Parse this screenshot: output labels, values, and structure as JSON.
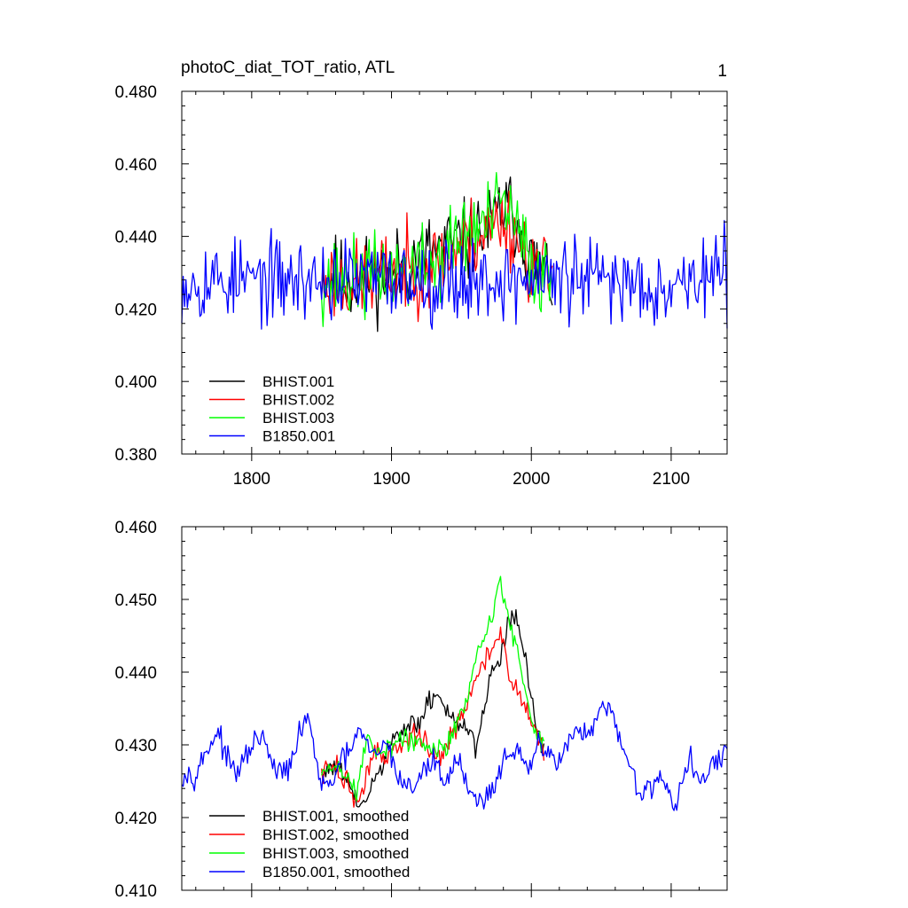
{
  "chart_data": [
    {
      "type": "line",
      "title": "photoC_diat_TOT_ratio, ATL",
      "title_right": "1",
      "xlim": [
        1750,
        2140
      ],
      "ylim": [
        0.38,
        0.48
      ],
      "xticks": [
        1800,
        1900,
        2000,
        2100
      ],
      "xtick_labels": [
        "1800",
        "1900",
        "2000",
        "2100"
      ],
      "yticks": [
        0.38,
        0.4,
        0.42,
        0.44,
        0.46,
        0.48
      ],
      "ytick_labels": [
        "0.380",
        "0.400",
        "0.420",
        "0.440",
        "0.460",
        "0.480"
      ],
      "legend_position": "bottom-left",
      "grid": false,
      "series": [
        {
          "name": "BHIST.001",
          "color": "#000000",
          "x_range": [
            1850,
            2015
          ],
          "seed": 11,
          "noise": 0.0085,
          "anchors": [
            [
              1850,
              0.43
            ],
            [
              1870,
              0.428
            ],
            [
              1900,
              0.43
            ],
            [
              1930,
              0.436
            ],
            [
              1950,
              0.438
            ],
            [
              1970,
              0.442
            ],
            [
              1980,
              0.448
            ],
            [
              1990,
              0.445
            ],
            [
              2000,
              0.433
            ],
            [
              2015,
              0.428
            ]
          ]
        },
        {
          "name": "BHIST.002",
          "color": "#ff0000",
          "x_range": [
            1850,
            2015
          ],
          "seed": 23,
          "noise": 0.0085,
          "anchors": [
            [
              1850,
              0.428
            ],
            [
              1870,
              0.427
            ],
            [
              1900,
              0.43
            ],
            [
              1930,
              0.432
            ],
            [
              1950,
              0.438
            ],
            [
              1970,
              0.442
            ],
            [
              1980,
              0.445
            ],
            [
              1990,
              0.44
            ],
            [
              2000,
              0.432
            ],
            [
              2015,
              0.428
            ]
          ]
        },
        {
          "name": "BHIST.003",
          "color": "#00ff00",
          "x_range": [
            1850,
            2015
          ],
          "seed": 37,
          "noise": 0.0085,
          "anchors": [
            [
              1850,
              0.428
            ],
            [
              1870,
              0.428
            ],
            [
              1900,
              0.43
            ],
            [
              1930,
              0.432
            ],
            [
              1950,
              0.44
            ],
            [
              1970,
              0.444
            ],
            [
              1980,
              0.45
            ],
            [
              1990,
              0.441
            ],
            [
              2000,
              0.432
            ],
            [
              2015,
              0.428
            ]
          ]
        },
        {
          "name": "B1850.001",
          "color": "#0000ff",
          "x_range": [
            1750,
            2140
          ],
          "seed": 53,
          "noise": 0.0085,
          "anchors": [
            [
              1750,
              0.428
            ],
            [
              1800,
              0.428
            ],
            [
              1850,
              0.428
            ],
            [
              1900,
              0.428
            ],
            [
              1950,
              0.428
            ],
            [
              2000,
              0.428
            ],
            [
              2050,
              0.428
            ],
            [
              2100,
              0.427
            ],
            [
              2140,
              0.43
            ]
          ]
        }
      ]
    },
    {
      "type": "line",
      "xlim": [
        1750,
        2140
      ],
      "ylim": [
        0.41,
        0.46
      ],
      "xticks": [
        1800,
        1900,
        2000,
        2100
      ],
      "yticks": [
        0.41,
        0.42,
        0.43,
        0.44,
        0.45,
        0.46
      ],
      "ytick_labels": [
        "0.410",
        "0.420",
        "0.430",
        "0.440",
        "0.450",
        "0.460"
      ],
      "legend_position": "bottom-left",
      "grid": false,
      "series": [
        {
          "name": "BHIST.001, smoothed",
          "color": "#000000",
          "x_range": [
            1850,
            2009
          ],
          "seed": 61,
          "noise": 0.0012,
          "anchors": [
            [
              1850,
              0.426
            ],
            [
              1860,
              0.427
            ],
            [
              1868,
              0.425
            ],
            [
              1875,
              0.422
            ],
            [
              1882,
              0.422
            ],
            [
              1890,
              0.426
            ],
            [
              1900,
              0.43
            ],
            [
              1908,
              0.432
            ],
            [
              1920,
              0.433
            ],
            [
              1930,
              0.437
            ],
            [
              1940,
              0.435
            ],
            [
              1947,
              0.433
            ],
            [
              1955,
              0.432
            ],
            [
              1960,
              0.429
            ],
            [
              1965,
              0.433
            ],
            [
              1972,
              0.441
            ],
            [
              1978,
              0.442
            ],
            [
              1985,
              0.448
            ],
            [
              1990,
              0.447
            ],
            [
              1996,
              0.441
            ],
            [
              2003,
              0.433
            ],
            [
              2009,
              0.429
            ]
          ]
        },
        {
          "name": "BHIST.002, smoothed",
          "color": "#ff0000",
          "x_range": [
            1850,
            2009
          ],
          "seed": 73,
          "noise": 0.0012,
          "anchors": [
            [
              1850,
              0.426
            ],
            [
              1860,
              0.427
            ],
            [
              1868,
              0.425
            ],
            [
              1875,
              0.422
            ],
            [
              1880,
              0.424
            ],
            [
              1888,
              0.43
            ],
            [
              1895,
              0.428
            ],
            [
              1905,
              0.43
            ],
            [
              1915,
              0.431
            ],
            [
              1925,
              0.43
            ],
            [
              1935,
              0.428
            ],
            [
              1945,
              0.432
            ],
            [
              1955,
              0.436
            ],
            [
              1962,
              0.44
            ],
            [
              1970,
              0.442
            ],
            [
              1978,
              0.446
            ],
            [
              1985,
              0.439
            ],
            [
              1992,
              0.437
            ],
            [
              2000,
              0.433
            ],
            [
              2009,
              0.429
            ]
          ]
        },
        {
          "name": "BHIST.003, smoothed",
          "color": "#00ff00",
          "x_range": [
            1850,
            2009
          ],
          "seed": 89,
          "noise": 0.0012,
          "anchors": [
            [
              1850,
              0.426
            ],
            [
              1860,
              0.427
            ],
            [
              1868,
              0.426
            ],
            [
              1875,
              0.423
            ],
            [
              1882,
              0.431
            ],
            [
              1890,
              0.429
            ],
            [
              1900,
              0.43
            ],
            [
              1910,
              0.431
            ],
            [
              1920,
              0.43
            ],
            [
              1930,
              0.429
            ],
            [
              1940,
              0.43
            ],
            [
              1948,
              0.434
            ],
            [
              1955,
              0.437
            ],
            [
              1962,
              0.443
            ],
            [
              1970,
              0.447
            ],
            [
              1978,
              0.452
            ],
            [
              1983,
              0.448
            ],
            [
              1990,
              0.443
            ],
            [
              1996,
              0.437
            ],
            [
              2003,
              0.432
            ],
            [
              2009,
              0.43
            ]
          ]
        },
        {
          "name": "B1850.001, smoothed",
          "color": "#0000ff",
          "x_range": [
            1750,
            2140
          ],
          "seed": 97,
          "noise": 0.0012,
          "anchors": [
            [
              1750,
              0.426
            ],
            [
              1760,
              0.426
            ],
            [
              1770,
              0.43
            ],
            [
              1776,
              0.432
            ],
            [
              1782,
              0.428
            ],
            [
              1790,
              0.426
            ],
            [
              1800,
              0.43
            ],
            [
              1808,
              0.431
            ],
            [
              1815,
              0.427
            ],
            [
              1822,
              0.426
            ],
            [
              1830,
              0.428
            ],
            [
              1838,
              0.434
            ],
            [
              1842,
              0.433
            ],
            [
              1848,
              0.425
            ],
            [
              1855,
              0.424
            ],
            [
              1862,
              0.427
            ],
            [
              1870,
              0.429
            ],
            [
              1876,
              0.432
            ],
            [
              1882,
              0.43
            ],
            [
              1890,
              0.428
            ],
            [
              1895,
              0.431
            ],
            [
              1900,
              0.428
            ],
            [
              1907,
              0.425
            ],
            [
              1915,
              0.424
            ],
            [
              1922,
              0.426
            ],
            [
              1930,
              0.428
            ],
            [
              1938,
              0.425
            ],
            [
              1948,
              0.428
            ],
            [
              1958,
              0.423
            ],
            [
              1962,
              0.422
            ],
            [
              1968,
              0.423
            ],
            [
              1975,
              0.425
            ],
            [
              1982,
              0.429
            ],
            [
              1990,
              0.429
            ],
            [
              1998,
              0.426
            ],
            [
              2004,
              0.43
            ],
            [
              2010,
              0.429
            ],
            [
              2018,
              0.428
            ],
            [
              2025,
              0.43
            ],
            [
              2032,
              0.432
            ],
            [
              2040,
              0.431
            ],
            [
              2048,
              0.434
            ],
            [
              2054,
              0.435
            ],
            [
              2060,
              0.433
            ],
            [
              2066,
              0.429
            ],
            [
              2072,
              0.427
            ],
            [
              2078,
              0.423
            ],
            [
              2085,
              0.424
            ],
            [
              2092,
              0.426
            ],
            [
              2098,
              0.424
            ],
            [
              2102,
              0.421
            ],
            [
              2108,
              0.425
            ],
            [
              2114,
              0.428
            ],
            [
              2120,
              0.425
            ],
            [
              2126,
              0.426
            ],
            [
              2132,
              0.428
            ],
            [
              2136,
              0.428
            ],
            [
              2140,
              0.43
            ]
          ]
        }
      ]
    }
  ]
}
